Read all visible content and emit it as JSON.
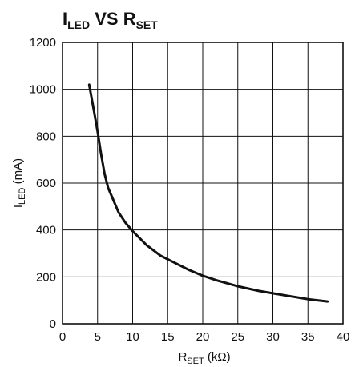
{
  "chart_data": {
    "type": "line",
    "title": {
      "main": "I",
      "main_sub": "LED",
      "middle": " VS R",
      "tail_sub": "SET"
    },
    "xlabel": {
      "main": "R",
      "sub": "SET",
      "tail": " (kΩ)"
    },
    "ylabel": {
      "main": "I",
      "sub": "LED",
      "tail": " (mA)"
    },
    "xlim": [
      0,
      40
    ],
    "ylim": [
      0,
      1200
    ],
    "x_ticks": [
      0,
      5,
      10,
      15,
      20,
      25,
      30,
      35,
      40
    ],
    "y_ticks": [
      0,
      200,
      400,
      600,
      800,
      1000,
      1200
    ],
    "grid": true,
    "series": [
      {
        "x": [
          3.8,
          4.5,
          5.0,
          5.5,
          6.0,
          6.5,
          7.0,
          8.0,
          9.0,
          10.0,
          12.0,
          14.0,
          16.0,
          18.0,
          20.0,
          22.0,
          25.0,
          28.0,
          30.0,
          32.0,
          35.0,
          37.8
        ],
        "y": [
          1020,
          905,
          820,
          725,
          640,
          580,
          545,
          475,
          430,
          395,
          335,
          290,
          260,
          230,
          205,
          185,
          160,
          140,
          130,
          120,
          105,
          95
        ],
        "color": "#111111"
      }
    ]
  }
}
